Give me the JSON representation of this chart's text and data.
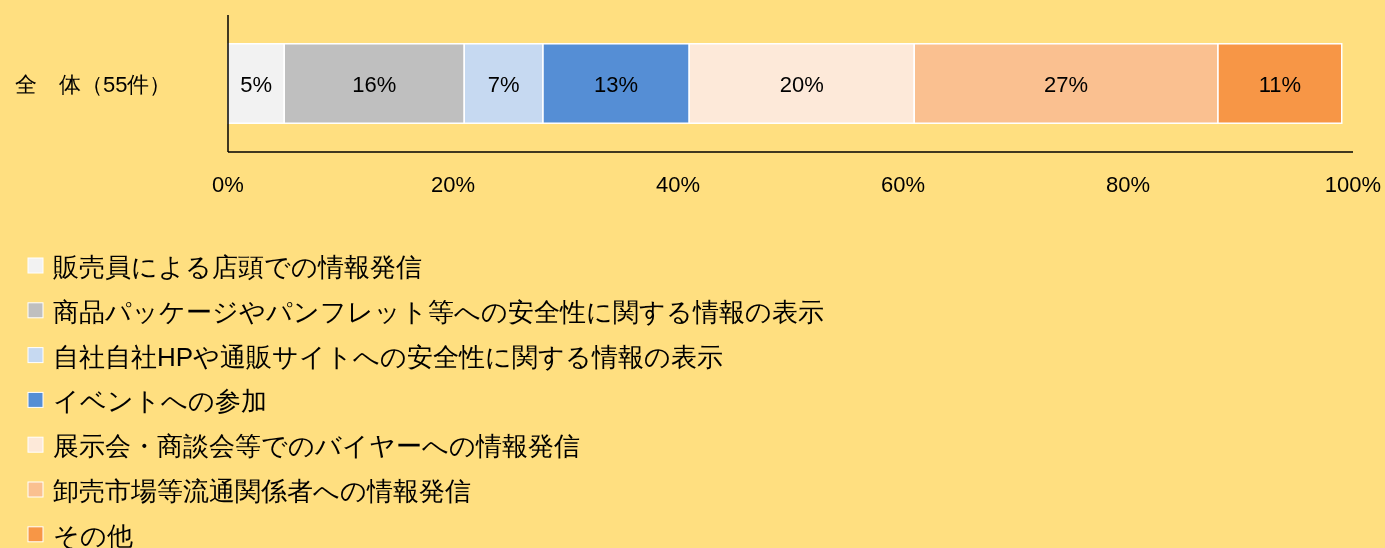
{
  "chart_data": {
    "type": "bar",
    "orientation": "horizontal",
    "stacked": true,
    "categories": [
      "全　体（55件）"
    ],
    "series": [
      {
        "name": "販売員による店頭での情報発信",
        "color": "#f2f2f2",
        "values": [
          5
        ],
        "value_labels": [
          "5%"
        ]
      },
      {
        "name": "商品パッケージやパンフレット等への安全性に関する情報の表示",
        "color": "#bfbfbf",
        "values": [
          16
        ],
        "value_labels": [
          "16%"
        ]
      },
      {
        "name": "自社自社HPや通販サイトへの安全性に関する情報の表示",
        "color": "#c6d9f1",
        "values": [
          7
        ],
        "value_labels": [
          "7%"
        ]
      },
      {
        "name": "イベントへの参加",
        "color": "#558ed5",
        "values": [
          13
        ],
        "value_labels": [
          "13%"
        ]
      },
      {
        "name": "展示会・商談会等でのバイヤーへの情報発信",
        "color": "#fde9d9",
        "values": [
          20
        ],
        "value_labels": [
          "20%"
        ]
      },
      {
        "name": "卸売市場等流通関係者への情報発信",
        "color": "#fac090",
        "values": [
          27
        ],
        "value_labels": [
          "27%"
        ]
      },
      {
        "name": "その他",
        "color": "#f79646",
        "values": [
          11
        ],
        "value_labels": [
          "11%"
        ]
      }
    ],
    "xlim": [
      0,
      100
    ],
    "xticks": [
      {
        "value": 0,
        "label": "0%"
      },
      {
        "value": 20,
        "label": "20%"
      },
      {
        "value": 40,
        "label": "40%"
      },
      {
        "value": 60,
        "label": "60%"
      },
      {
        "value": 80,
        "label": "80%"
      },
      {
        "value": 100,
        "label": "100%"
      }
    ],
    "legend": "bottom"
  }
}
